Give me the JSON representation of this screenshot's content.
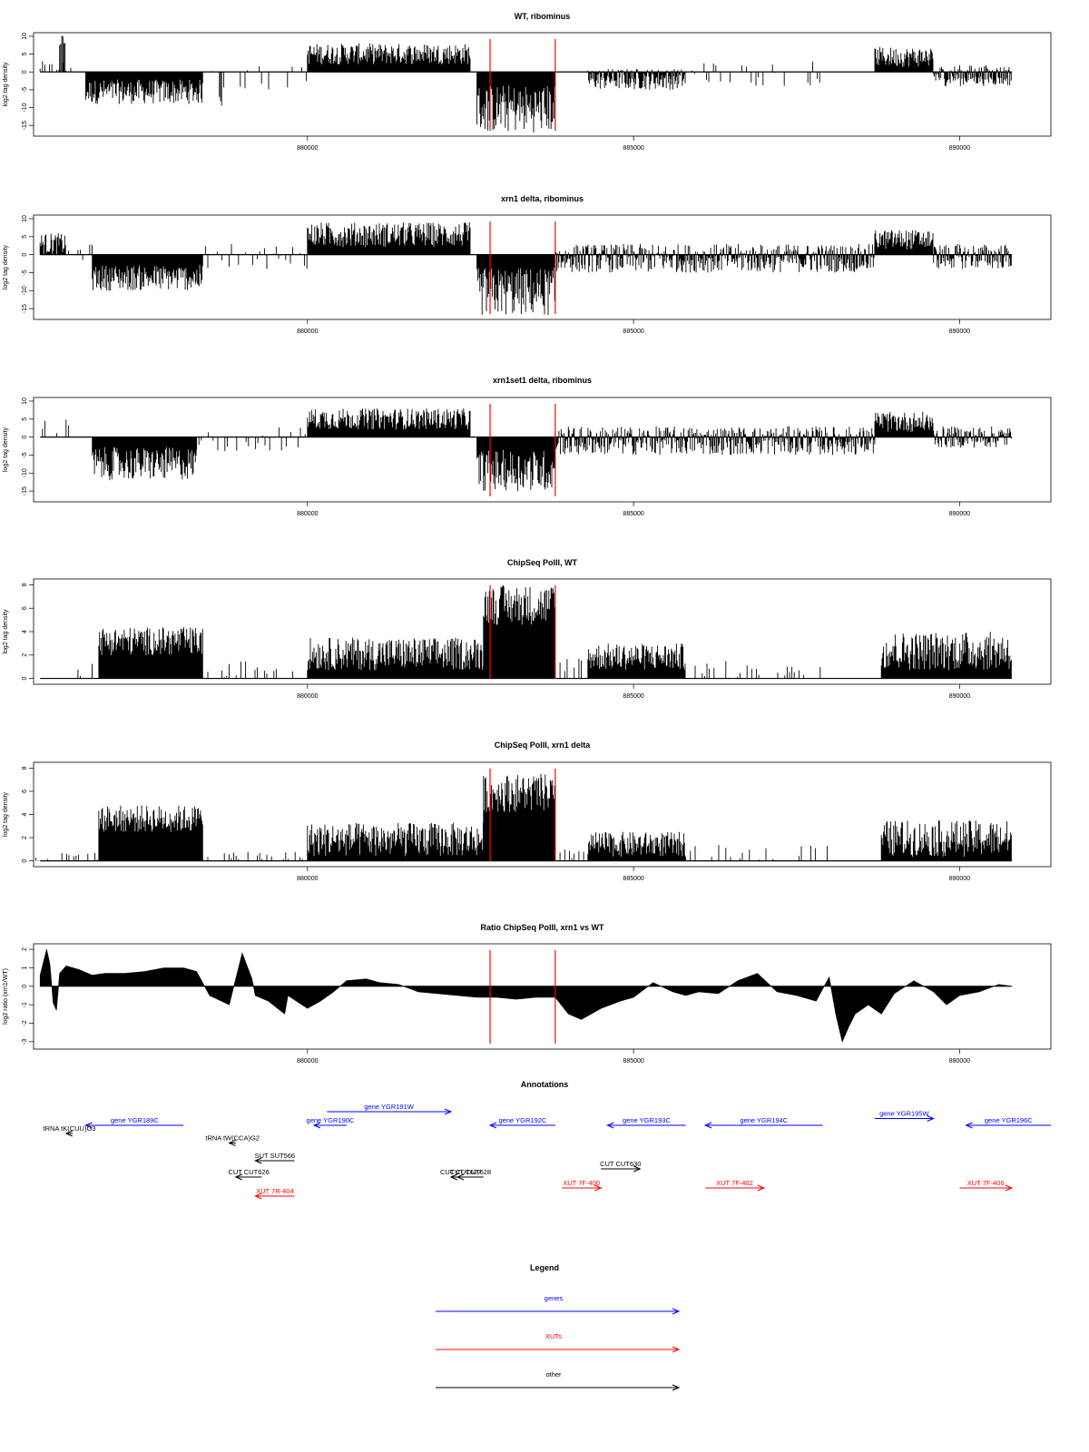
{
  "colors": {
    "gene": "#0000ff",
    "xut": "#ff0000",
    "other": "#000000",
    "marker": "#ff0000",
    "signal": "#000000"
  },
  "chart_data": [
    {
      "type": "bar",
      "title": "WT, ribominus",
      "ylabel": "log2 tag density",
      "xlim": [
        875800,
        891400
      ],
      "ylim": [
        -18,
        11
      ],
      "yticks": [
        -15,
        -10,
        -5,
        0,
        5,
        10
      ],
      "xticks": [
        880000,
        885000,
        890000
      ],
      "grid": false,
      "legend": "none",
      "markers": [
        882800,
        883800
      ],
      "profile": [
        {
          "x0": 875900,
          "x1": 876400,
          "kind": "sparse",
          "lo": 0,
          "hi": 3
        },
        {
          "x0": 876200,
          "x1": 876300,
          "kind": "spike",
          "lo": 0,
          "hi": 10.5
        },
        {
          "x0": 876600,
          "x1": 878400,
          "kind": "dense",
          "lo": -9,
          "hi": -3
        },
        {
          "x0": 878500,
          "x1": 880000,
          "kind": "sparse",
          "lo": -5,
          "hi": 3
        },
        {
          "x0": 878650,
          "x1": 878700,
          "kind": "spike",
          "lo": -11,
          "hi": 0
        },
        {
          "x0": 880000,
          "x1": 882500,
          "kind": "dense",
          "lo": 3,
          "hi": 8
        },
        {
          "x0": 882600,
          "x1": 883800,
          "kind": "dense",
          "lo": -17,
          "hi": -5
        },
        {
          "x0": 884300,
          "x1": 885800,
          "kind": "dense",
          "lo": -5,
          "hi": 1
        },
        {
          "x0": 885900,
          "x1": 887900,
          "kind": "sparse",
          "lo": -4,
          "hi": 3
        },
        {
          "x0": 888700,
          "x1": 889600,
          "kind": "dense",
          "lo": 2,
          "hi": 7
        },
        {
          "x0": 889600,
          "x1": 890800,
          "kind": "dense",
          "lo": -4,
          "hi": 2
        }
      ]
    },
    {
      "type": "bar",
      "title": "xrn1 delta, ribominus",
      "ylabel": "log2 tag density",
      "xlim": [
        875800,
        891400
      ],
      "ylim": [
        -18,
        11
      ],
      "yticks": [
        -15,
        -10,
        -5,
        0,
        5,
        10
      ],
      "xticks": [
        880000,
        885000,
        890000
      ],
      "grid": false,
      "legend": "none",
      "markers": [
        882800,
        883800
      ],
      "profile": [
        {
          "x0": 875900,
          "x1": 876300,
          "kind": "dense",
          "lo": 0,
          "hi": 6
        },
        {
          "x0": 876300,
          "x1": 876700,
          "kind": "sparse",
          "lo": -2,
          "hi": 3
        },
        {
          "x0": 876700,
          "x1": 878400,
          "kind": "dense",
          "lo": -10,
          "hi": -4
        },
        {
          "x0": 878400,
          "x1": 880000,
          "kind": "sparse",
          "lo": -4,
          "hi": 3
        },
        {
          "x0": 880000,
          "x1": 882500,
          "kind": "dense",
          "lo": 3,
          "hi": 9
        },
        {
          "x0": 882600,
          "x1": 883800,
          "kind": "dense",
          "lo": -17,
          "hi": -5
        },
        {
          "x0": 883800,
          "x1": 888700,
          "kind": "dense",
          "lo": -5,
          "hi": 3
        },
        {
          "x0": 888700,
          "x1": 889600,
          "kind": "dense",
          "lo": 2,
          "hi": 7
        },
        {
          "x0": 889600,
          "x1": 890800,
          "kind": "dense",
          "lo": -4,
          "hi": 3
        }
      ]
    },
    {
      "type": "bar",
      "title": "xrn1set1 delta, ribominus",
      "ylabel": "log2 tag density",
      "xlim": [
        875800,
        891400
      ],
      "ylim": [
        -18,
        11
      ],
      "yticks": [
        -15,
        -10,
        -5,
        0,
        5,
        10
      ],
      "xticks": [
        880000,
        885000,
        890000
      ],
      "grid": false,
      "legend": "none",
      "markers": [
        882800,
        883800
      ],
      "profile": [
        {
          "x0": 875900,
          "x1": 876400,
          "kind": "sparse",
          "lo": 0,
          "hi": 5
        },
        {
          "x0": 876700,
          "x1": 878300,
          "kind": "dense",
          "lo": -12,
          "hi": -4
        },
        {
          "x0": 878300,
          "x1": 880000,
          "kind": "sparse",
          "lo": -4,
          "hi": 3
        },
        {
          "x0": 880000,
          "x1": 882500,
          "kind": "dense",
          "lo": 3,
          "hi": 8
        },
        {
          "x0": 882600,
          "x1": 883800,
          "kind": "dense",
          "lo": -15,
          "hi": -5
        },
        {
          "x0": 883800,
          "x1": 888700,
          "kind": "dense",
          "lo": -5,
          "hi": 3
        },
        {
          "x0": 888700,
          "x1": 889600,
          "kind": "dense",
          "lo": 2,
          "hi": 7
        },
        {
          "x0": 889600,
          "x1": 890800,
          "kind": "dense",
          "lo": -3,
          "hi": 3
        }
      ]
    },
    {
      "type": "bar",
      "title": "ChipSeq PolII, WT",
      "ylabel": "log2 tag density",
      "xlim": [
        875800,
        891400
      ],
      "ylim": [
        -0.5,
        8.5
      ],
      "yticks": [
        0,
        2,
        4,
        6,
        8
      ],
      "xticks": [
        880000,
        885000,
        890000
      ],
      "grid": false,
      "legend": "none",
      "markers": [
        882800,
        883800
      ],
      "profile": [
        {
          "x0": 876300,
          "x1": 876800,
          "kind": "sparse",
          "lo": 0,
          "hi": 1.5
        },
        {
          "x0": 876800,
          "x1": 878400,
          "kind": "dense",
          "lo": 2.8,
          "hi": 4.4
        },
        {
          "x0": 878400,
          "x1": 880000,
          "kind": "sparse",
          "lo": 0,
          "hi": 1.5
        },
        {
          "x0": 880000,
          "x1": 882700,
          "kind": "dense",
          "lo": 1,
          "hi": 3.5
        },
        {
          "x0": 882700,
          "x1": 883800,
          "kind": "dense",
          "lo": 6.5,
          "hi": 8
        },
        {
          "x0": 883800,
          "x1": 884300,
          "kind": "sparse",
          "lo": 0,
          "hi": 2
        },
        {
          "x0": 884300,
          "x1": 885800,
          "kind": "dense",
          "lo": 1,
          "hi": 3
        },
        {
          "x0": 885800,
          "x1": 887900,
          "kind": "sparse",
          "lo": 0,
          "hi": 1.5
        },
        {
          "x0": 888800,
          "x1": 890800,
          "kind": "dense",
          "lo": 1,
          "hi": 4
        }
      ]
    },
    {
      "type": "bar",
      "title": "ChipSeq PolII, xrn1 delta",
      "ylabel": "log2 tag density",
      "xlim": [
        875800,
        891400
      ],
      "ylim": [
        -0.5,
        8.5
      ],
      "yticks": [
        0,
        2,
        4,
        6,
        8
      ],
      "xticks": [
        880000,
        885000,
        890000
      ],
      "grid": false,
      "legend": "none",
      "markers": [
        882800,
        883800
      ],
      "profile": [
        {
          "x0": 875800,
          "x1": 876800,
          "kind": "sparse",
          "lo": 0,
          "hi": 0.7
        },
        {
          "x0": 876800,
          "x1": 878400,
          "kind": "dense",
          "lo": 3.5,
          "hi": 4.8
        },
        {
          "x0": 878400,
          "x1": 880000,
          "kind": "sparse",
          "lo": 0,
          "hi": 0.8
        },
        {
          "x0": 880000,
          "x1": 882700,
          "kind": "dense",
          "lo": 0.5,
          "hi": 3.3
        },
        {
          "x0": 882700,
          "x1": 883800,
          "kind": "dense",
          "lo": 6,
          "hi": 7.5
        },
        {
          "x0": 883800,
          "x1": 884300,
          "kind": "sparse",
          "lo": 0,
          "hi": 1.2
        },
        {
          "x0": 884300,
          "x1": 885800,
          "kind": "dense",
          "lo": 0.5,
          "hi": 2.5
        },
        {
          "x0": 885800,
          "x1": 888000,
          "kind": "sparse",
          "lo": 0,
          "hi": 1.4
        },
        {
          "x0": 888800,
          "x1": 890800,
          "kind": "dense",
          "lo": 0.5,
          "hi": 3.5
        }
      ]
    },
    {
      "type": "area",
      "title": "Ratio ChipSeq PolII, xrn1 vs WT",
      "ylabel": "log2 ratio (xrn1/WT)",
      "xlim": [
        875800,
        891400
      ],
      "ylim": [
        -3.4,
        2.3
      ],
      "yticks": [
        -3,
        -2,
        -1,
        0,
        1,
        2
      ],
      "xticks": [
        880000,
        885000,
        890000
      ],
      "grid": false,
      "legend": "none",
      "markers": [
        882800,
        883800
      ],
      "x": [
        875900,
        876000,
        876050,
        876100,
        876150,
        876200,
        876300,
        876500,
        876700,
        876900,
        877200,
        877500,
        877800,
        878100,
        878300,
        878500,
        878800,
        879000,
        879150,
        879200,
        879400,
        879650,
        879700,
        880000,
        880200,
        880400,
        880600,
        880900,
        881100,
        881400,
        881700,
        882000,
        882300,
        882600,
        882900,
        883200,
        883500,
        883800,
        884000,
        884200,
        884500,
        884800,
        885000,
        885300,
        885600,
        885800,
        886000,
        886300,
        886600,
        886900,
        887200,
        887500,
        887800,
        888000,
        888100,
        888200,
        888300,
        888400,
        888600,
        888800,
        889000,
        889300,
        889600,
        889800,
        890000,
        890300,
        890600,
        890800
      ],
      "y": [
        0.6,
        2.0,
        1.2,
        -0.9,
        -1.3,
        0.7,
        1.1,
        0.9,
        0.6,
        0.7,
        0.7,
        0.8,
        1.0,
        1.0,
        0.8,
        -0.5,
        -1.0,
        1.8,
        0.4,
        -0.5,
        -0.8,
        -1.5,
        -0.5,
        -1.2,
        -0.8,
        -0.3,
        0.3,
        0.4,
        0.2,
        0.1,
        -0.3,
        -0.4,
        -0.5,
        -0.6,
        -0.6,
        -0.7,
        -0.6,
        -0.6,
        -1.5,
        -1.8,
        -1.2,
        -0.8,
        -0.6,
        0.2,
        -0.3,
        -0.5,
        -0.3,
        -0.4,
        0.3,
        0.7,
        -0.3,
        -0.5,
        -0.8,
        0.5,
        -1.5,
        -3.0,
        -2.2,
        -1.5,
        -1.0,
        -1.5,
        -0.4,
        0.3,
        -0.3,
        -1.0,
        -0.5,
        -0.3,
        0.1,
        0.0
      ]
    }
  ],
  "annotations": {
    "title": "Annotations",
    "xlim": [
      875800,
      891400
    ],
    "features": [
      {
        "label": "gene YGR189C",
        "type": "gene",
        "start": 876600,
        "end": 878100,
        "strand": "-",
        "row": 0
      },
      {
        "label": "gene YGR190C",
        "type": "gene",
        "start": 880100,
        "end": 880600,
        "strand": "-",
        "row": 0
      },
      {
        "label": "gene YGR191W",
        "type": "gene",
        "start": 880300,
        "end": 882200,
        "strand": "+",
        "row": -1
      },
      {
        "label": "gene YGR192C",
        "type": "gene",
        "start": 882800,
        "end": 883800,
        "strand": "-",
        "row": 0
      },
      {
        "label": "gene YGR193C",
        "type": "gene",
        "start": 884600,
        "end": 885800,
        "strand": "-",
        "row": 0
      },
      {
        "label": "gene YGR194C",
        "type": "gene",
        "start": 886100,
        "end": 887900,
        "strand": "-",
        "row": 0
      },
      {
        "label": "gene YGR195W",
        "type": "gene",
        "start": 888700,
        "end": 889600,
        "strand": "+",
        "row": -0.5
      },
      {
        "label": "gene YGR196C",
        "type": "gene",
        "start": 890100,
        "end": 891400,
        "strand": "-",
        "row": 0
      },
      {
        "label": "tRNA tK(CUU)G3",
        "type": "other",
        "start": 876300,
        "end": 876400,
        "strand": "-",
        "row": 0.6
      },
      {
        "label": "tRNA tW(CCA)G2",
        "type": "other",
        "start": 878800,
        "end": 878900,
        "strand": "-",
        "row": 1.3
      },
      {
        "label": "SUT SUT566",
        "type": "other",
        "start": 879200,
        "end": 879800,
        "strand": "-",
        "row": 2.6
      },
      {
        "label": "CUT CUT626",
        "type": "other",
        "start": 878900,
        "end": 879300,
        "strand": "-",
        "row": 3.8
      },
      {
        "label": "CUT CUT628",
        "type": "other",
        "start": 882300,
        "end": 882700,
        "strand": "-",
        "row": 3.8
      },
      {
        "label": "CUT CUT627",
        "type": "other",
        "start": 882200,
        "end": 882500,
        "strand": "-",
        "row": 3.8
      },
      {
        "label": "CUT CUT630",
        "type": "other",
        "start": 884500,
        "end": 885100,
        "strand": "+",
        "row": 3.2
      },
      {
        "label": "XUT 7F-400",
        "type": "xut",
        "start": 883900,
        "end": 884500,
        "strand": "+",
        "row": 4.6
      },
      {
        "label": "XUT 7F-402",
        "type": "xut",
        "start": 886100,
        "end": 887000,
        "strand": "+",
        "row": 4.6
      },
      {
        "label": "XUT 7F-406",
        "type": "xut",
        "start": 890000,
        "end": 890800,
        "strand": "+",
        "row": 4.6
      },
      {
        "label": "XUT 7R-404",
        "type": "xut",
        "start": 879200,
        "end": 879800,
        "strand": "-",
        "row": 5.2
      }
    ]
  },
  "legend": {
    "title": "Legend",
    "items": [
      {
        "label": "genes",
        "type": "gene"
      },
      {
        "label": "XUTs",
        "type": "xut"
      },
      {
        "label": "other",
        "type": "other"
      }
    ]
  }
}
